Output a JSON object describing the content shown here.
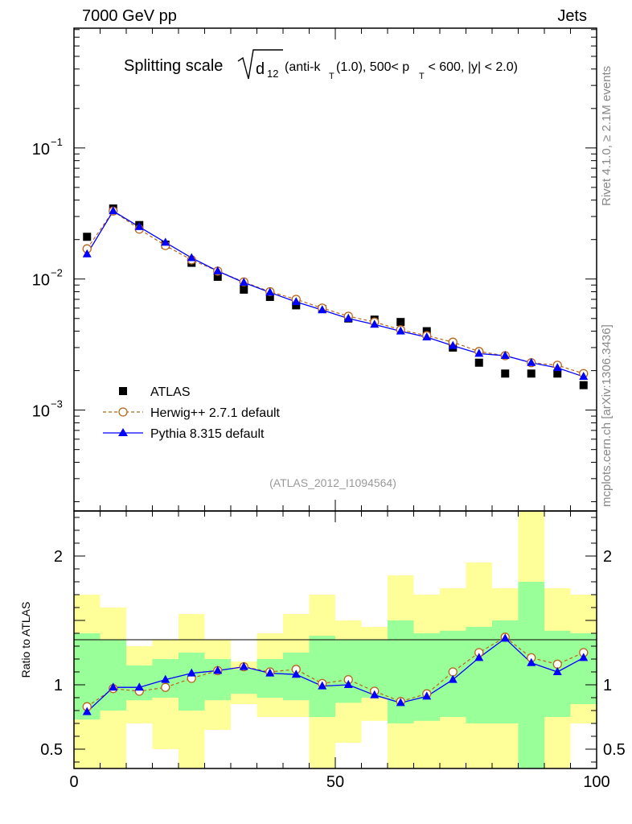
{
  "header": {
    "left": "7000 GeV pp",
    "right": "Jets"
  },
  "side": {
    "rivet": "Rivet 4.1.0, ≥ 2.1M events",
    "mcplots": "mcplots.cern.ch [arXiv:1306.3436]"
  },
  "analysis_id": "(ATLAS_2012_I1094564)",
  "colors": {
    "data": "#000000",
    "herwig": "#b8651b",
    "pythia": "#0000ff",
    "band_outer": "#ffff99",
    "band_inner": "#99ff99"
  },
  "chart_data": [
    {
      "type": "scatter",
      "title": {
        "main": "Splitting scale",
        "sqrt": "d",
        "sqrt_sub": "12",
        "cond_a": "(anti-k",
        "cond_a_sub": "T",
        "cond_b": "(1.0), 500< p",
        "cond_b_sub": "T",
        "cond_c": " < 600, |y| < 2.0)"
      },
      "xlim": [
        0,
        100
      ],
      "ylim": [
        0.00017,
        0.82
      ],
      "yscale": "log",
      "y_ticks": [
        {
          "value": 0.1,
          "base": "10",
          "exp": "−1"
        },
        {
          "value": 0.01,
          "base": "10",
          "exp": "−2"
        },
        {
          "value": 0.001,
          "base": "10",
          "exp": "−3"
        }
      ],
      "legend": [
        "ATLAS",
        "Herwig++ 2.7.1 default",
        "Pythia 8.315 default"
      ],
      "legend_position": "lower-left",
      "x": [
        2.5,
        7.5,
        12.5,
        17.5,
        22.5,
        27.5,
        32.5,
        37.5,
        42.5,
        47.5,
        52.5,
        57.5,
        62.5,
        67.5,
        72.5,
        77.5,
        82.5,
        87.5,
        92.5,
        97.5
      ],
      "series": [
        {
          "name": "ATLAS",
          "values": [
            0.021,
            0.0345,
            0.0258,
            0.0183,
            0.0133,
            0.0104,
            0.0083,
            0.0073,
            0.0063,
            0.0059,
            0.005,
            0.0049,
            0.0047,
            0.004,
            0.003,
            0.0023,
            0.0019,
            0.0019,
            0.0019,
            0.00155
          ]
        },
        {
          "name": "Herwig++ 2.7.1 default",
          "values": [
            0.017,
            0.033,
            0.024,
            0.018,
            0.014,
            0.0115,
            0.0095,
            0.008,
            0.007,
            0.006,
            0.0052,
            0.0047,
            0.0041,
            0.0037,
            0.0033,
            0.0028,
            0.0026,
            0.0023,
            0.0022,
            0.0019
          ]
        },
        {
          "name": "Pythia 8.315 default",
          "values": [
            0.0155,
            0.033,
            0.025,
            0.019,
            0.0145,
            0.0115,
            0.0094,
            0.0079,
            0.0067,
            0.0058,
            0.005,
            0.0045,
            0.004,
            0.0036,
            0.0031,
            0.0027,
            0.0026,
            0.0023,
            0.0021,
            0.0018
          ]
        }
      ]
    },
    {
      "type": "line",
      "ylabel": "Ratio to ATLAS",
      "xlim": [
        0,
        100
      ],
      "ylim": [
        0.35,
        2.35
      ],
      "y_ticks": [
        0.5,
        1,
        2
      ],
      "y_tick_labels": [
        "0.5",
        "1",
        "2"
      ],
      "x_ticks": [
        0,
        50,
        100
      ],
      "x_tick_labels": [
        "0",
        "50",
        "100"
      ],
      "bin_edges": [
        0,
        5,
        10,
        15,
        20,
        25,
        30,
        35,
        40,
        45,
        50,
        55,
        60,
        65,
        70,
        75,
        80,
        85,
        90,
        95,
        100
      ],
      "band_outer": [
        [
          0.32,
          1.7
        ],
        [
          0.32,
          1.6
        ],
        [
          0.7,
          1.3
        ],
        [
          0.5,
          1.35
        ],
        [
          0.35,
          1.55
        ],
        [
          0.65,
          1.35
        ],
        [
          0.85,
          1.18
        ],
        [
          0.75,
          1.4
        ],
        [
          0.75,
          1.55
        ],
        [
          0.3,
          1.7
        ],
        [
          0.55,
          1.5
        ],
        [
          0.72,
          1.45
        ],
        [
          0.3,
          1.85
        ],
        [
          0.3,
          1.7
        ],
        [
          0.35,
          1.75
        ],
        [
          0.35,
          1.95
        ],
        [
          0.3,
          1.75
        ],
        [
          0.3,
          2.5
        ],
        [
          0.3,
          1.75
        ],
        [
          0.7,
          1.7
        ]
      ],
      "band_inner": [
        [
          0.73,
          1.4
        ],
        [
          0.8,
          1.35
        ],
        [
          0.88,
          1.15
        ],
        [
          0.9,
          1.2
        ],
        [
          0.8,
          1.25
        ],
        [
          0.88,
          1.2
        ],
        [
          0.93,
          1.12
        ],
        [
          0.9,
          1.2
        ],
        [
          0.88,
          1.25
        ],
        [
          0.75,
          1.38
        ],
        [
          0.86,
          1.35
        ],
        [
          0.9,
          1.35
        ],
        [
          0.7,
          1.5
        ],
        [
          0.72,
          1.4
        ],
        [
          0.75,
          1.42
        ],
        [
          0.7,
          1.45
        ],
        [
          0.7,
          1.5
        ],
        [
          0.3,
          1.8
        ],
        [
          0.75,
          1.42
        ],
        [
          0.85,
          1.4
        ]
      ],
      "series": [
        {
          "name": "Herwig++ 2.7.1 default",
          "values": [
            0.83,
            0.97,
            0.95,
            0.98,
            1.05,
            1.11,
            1.14,
            1.1,
            1.12,
            1.01,
            1.04,
            0.95,
            0.87,
            0.93,
            1.1,
            1.25,
            1.37,
            1.21,
            1.16,
            1.25
          ]
        },
        {
          "name": "Pythia 8.315 default",
          "values": [
            0.79,
            0.98,
            0.98,
            1.04,
            1.09,
            1.11,
            1.14,
            1.09,
            1.08,
            0.99,
            1.0,
            0.92,
            0.86,
            0.91,
            1.04,
            1.21,
            1.36,
            1.17,
            1.1,
            1.21
          ]
        }
      ]
    }
  ]
}
